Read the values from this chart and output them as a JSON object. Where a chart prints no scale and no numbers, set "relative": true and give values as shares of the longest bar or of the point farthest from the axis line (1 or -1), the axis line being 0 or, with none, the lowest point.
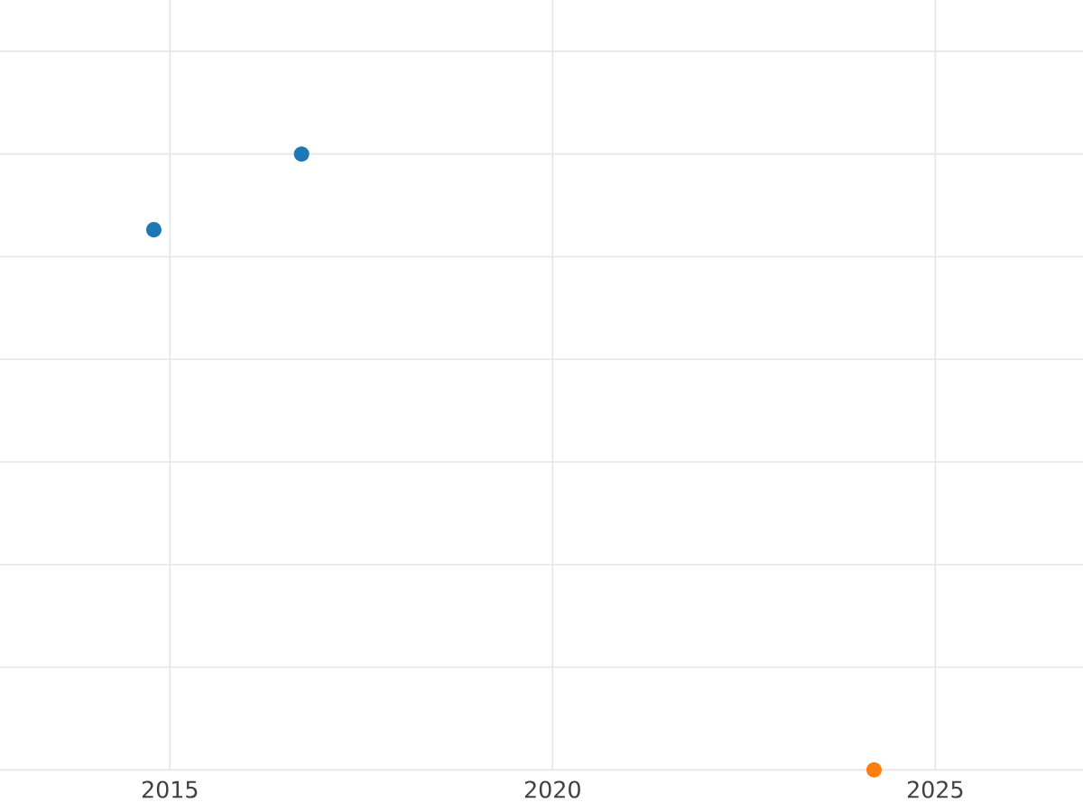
{
  "chart_data": {
    "type": "scatter",
    "relative": true,
    "marker": "circle",
    "grid": true,
    "tick_labels": "x",
    "xlim": [
      2012.78,
      2026.93
    ],
    "xticks": [
      2015,
      2020,
      2025
    ],
    "series": [
      {
        "color": "#1f77b4",
        "x": [
          2014.79,
          2016.72
        ],
        "values": [
          0.877,
          1
        ]
      },
      {
        "color": "#ff7f0e",
        "x": [
          2024.2
        ],
        "values": [
          0
        ]
      }
    ]
  }
}
